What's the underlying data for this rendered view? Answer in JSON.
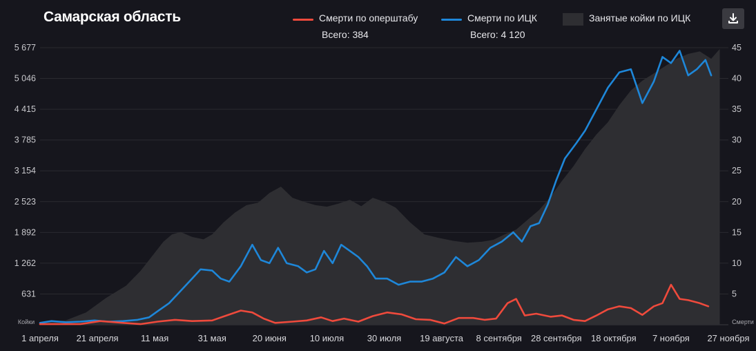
{
  "title": "Самарская область",
  "legend": {
    "red_label": "Смерти по оперштабу",
    "red_total": "Всего: 384",
    "blue_label": "Смерти по ИЦК",
    "blue_total": "Всего: 4 120",
    "area_label": "Занятые койки по ИЦК"
  },
  "download_icon": "download-icon",
  "colors": {
    "background": "#16161d",
    "red": "#ef4a3c",
    "blue": "#1e87d9",
    "area": "#2e2e32",
    "grid": "#2a2a30"
  },
  "chart_data": {
    "type": "line",
    "x_range": [
      "2020-04-01",
      "2020-11-27"
    ],
    "x_ticks": [
      "1 апреля",
      "21 апреля",
      "11 мая",
      "31 мая",
      "20 июня",
      "10 июля",
      "30 июля",
      "19 августа",
      "8 сентября",
      "28 сентября",
      "18 октября",
      "7 ноября",
      "27 ноября"
    ],
    "left_axis": {
      "unit_label": "Койки",
      "ticks": [
        "5 677",
        "5 046",
        "4 415",
        "3 785",
        "3 154",
        "2 523",
        "1 892",
        "1 262",
        "631"
      ],
      "ylim": [
        0,
        5677
      ]
    },
    "right_axis": {
      "unit_label": "Смерти",
      "ticks": [
        "45",
        "40",
        "35",
        "30",
        "25",
        "20",
        "15",
        "10",
        "5"
      ],
      "ylim": [
        0,
        45
      ]
    },
    "series": [
      {
        "name": "Занятые койки по ИЦК",
        "kind": "area",
        "axis": "left",
        "points": [
          [
            "2020-04-01",
            40
          ],
          [
            "2020-04-10",
            90
          ],
          [
            "2020-04-17",
            250
          ],
          [
            "2020-04-24",
            550
          ],
          [
            "2020-05-01",
            800
          ],
          [
            "2020-05-06",
            1100
          ],
          [
            "2020-05-10",
            1400
          ],
          [
            "2020-05-14",
            1700
          ],
          [
            "2020-05-17",
            1850
          ],
          [
            "2020-05-20",
            1900
          ],
          [
            "2020-05-24",
            1800
          ],
          [
            "2020-05-28",
            1750
          ],
          [
            "2020-05-31",
            1850
          ],
          [
            "2020-06-04",
            2100
          ],
          [
            "2020-06-08",
            2300
          ],
          [
            "2020-06-12",
            2450
          ],
          [
            "2020-06-16",
            2500
          ],
          [
            "2020-06-20",
            2700
          ],
          [
            "2020-06-24",
            2830
          ],
          [
            "2020-06-28",
            2600
          ],
          [
            "2020-07-02",
            2520
          ],
          [
            "2020-07-06",
            2450
          ],
          [
            "2020-07-10",
            2420
          ],
          [
            "2020-07-14",
            2480
          ],
          [
            "2020-07-18",
            2560
          ],
          [
            "2020-07-22",
            2430
          ],
          [
            "2020-07-26",
            2600
          ],
          [
            "2020-07-30",
            2520
          ],
          [
            "2020-08-03",
            2400
          ],
          [
            "2020-08-08",
            2100
          ],
          [
            "2020-08-13",
            1850
          ],
          [
            "2020-08-18",
            1780
          ],
          [
            "2020-08-23",
            1720
          ],
          [
            "2020-08-28",
            1680
          ],
          [
            "2020-09-02",
            1700
          ],
          [
            "2020-09-06",
            1740
          ],
          [
            "2020-09-10",
            1850
          ],
          [
            "2020-09-14",
            1950
          ],
          [
            "2020-09-18",
            2150
          ],
          [
            "2020-09-22",
            2350
          ],
          [
            "2020-09-26",
            2620
          ],
          [
            "2020-09-30",
            2950
          ],
          [
            "2020-10-04",
            3250
          ],
          [
            "2020-10-08",
            3600
          ],
          [
            "2020-10-12",
            3900
          ],
          [
            "2020-10-16",
            4150
          ],
          [
            "2020-10-20",
            4500
          ],
          [
            "2020-10-24",
            4800
          ],
          [
            "2020-10-28",
            5000
          ],
          [
            "2020-11-01",
            5150
          ],
          [
            "2020-11-05",
            5300
          ],
          [
            "2020-11-09",
            5450
          ],
          [
            "2020-11-13",
            5550
          ],
          [
            "2020-11-17",
            5600
          ],
          [
            "2020-11-21",
            5450
          ],
          [
            "2020-11-24",
            5650
          ]
        ]
      },
      {
        "name": "Смерти по ИЦК",
        "kind": "line",
        "axis": "right",
        "points": [
          [
            "2020-04-01",
            0.3
          ],
          [
            "2020-04-05",
            0.6
          ],
          [
            "2020-04-10",
            0.4
          ],
          [
            "2020-04-15",
            0.5
          ],
          [
            "2020-04-20",
            0.7
          ],
          [
            "2020-04-25",
            0.5
          ],
          [
            "2020-04-30",
            0.6
          ],
          [
            "2020-05-05",
            0.8
          ],
          [
            "2020-05-09",
            1.2
          ],
          [
            "2020-05-12",
            2.2
          ],
          [
            "2020-05-16",
            3.5
          ],
          [
            "2020-05-20",
            5.5
          ],
          [
            "2020-05-24",
            7.5
          ],
          [
            "2020-05-27",
            9.0
          ],
          [
            "2020-05-31",
            8.8
          ],
          [
            "2020-06-03",
            7.5
          ],
          [
            "2020-06-06",
            7.0
          ],
          [
            "2020-06-10",
            9.5
          ],
          [
            "2020-06-14",
            13.0
          ],
          [
            "2020-06-17",
            10.5
          ],
          [
            "2020-06-20",
            10.0
          ],
          [
            "2020-06-23",
            12.5
          ],
          [
            "2020-06-26",
            10.0
          ],
          [
            "2020-06-30",
            9.5
          ],
          [
            "2020-07-03",
            8.5
          ],
          [
            "2020-07-06",
            9.0
          ],
          [
            "2020-07-09",
            12.0
          ],
          [
            "2020-07-12",
            10.0
          ],
          [
            "2020-07-15",
            13.0
          ],
          [
            "2020-07-18",
            12.0
          ],
          [
            "2020-07-21",
            11.0
          ],
          [
            "2020-07-24",
            9.5
          ],
          [
            "2020-07-27",
            7.5
          ],
          [
            "2020-07-31",
            7.5
          ],
          [
            "2020-08-04",
            6.5
          ],
          [
            "2020-08-08",
            7.0
          ],
          [
            "2020-08-12",
            7.0
          ],
          [
            "2020-08-16",
            7.5
          ],
          [
            "2020-08-20",
            8.5
          ],
          [
            "2020-08-24",
            11.0
          ],
          [
            "2020-08-28",
            9.5
          ],
          [
            "2020-09-01",
            10.5
          ],
          [
            "2020-09-05",
            12.5
          ],
          [
            "2020-09-09",
            13.5
          ],
          [
            "2020-09-13",
            15.0
          ],
          [
            "2020-09-16",
            13.5
          ],
          [
            "2020-09-19",
            16.0
          ],
          [
            "2020-09-22",
            16.5
          ],
          [
            "2020-09-25",
            19.5
          ],
          [
            "2020-09-28",
            23.5
          ],
          [
            "2020-10-01",
            27.0
          ],
          [
            "2020-10-05",
            29.5
          ],
          [
            "2020-10-08",
            31.5
          ],
          [
            "2020-10-12",
            35.0
          ],
          [
            "2020-10-16",
            38.5
          ],
          [
            "2020-10-20",
            41.0
          ],
          [
            "2020-10-24",
            41.5
          ],
          [
            "2020-10-28",
            36.0
          ],
          [
            "2020-11-01",
            39.5
          ],
          [
            "2020-11-04",
            43.5
          ],
          [
            "2020-11-07",
            42.5
          ],
          [
            "2020-11-10",
            44.5
          ],
          [
            "2020-11-13",
            40.5
          ],
          [
            "2020-11-16",
            41.5
          ],
          [
            "2020-11-19",
            43.0
          ],
          [
            "2020-11-21",
            40.5
          ]
        ]
      },
      {
        "name": "Смерти по оперштабу",
        "kind": "line",
        "axis": "right",
        "points": [
          [
            "2020-04-01",
            0.1
          ],
          [
            "2020-04-15",
            0.1
          ],
          [
            "2020-04-22",
            0.6
          ],
          [
            "2020-04-30",
            0.3
          ],
          [
            "2020-05-06",
            0.1
          ],
          [
            "2020-05-12",
            0.5
          ],
          [
            "2020-05-18",
            0.8
          ],
          [
            "2020-05-24",
            0.6
          ],
          [
            "2020-05-31",
            0.7
          ],
          [
            "2020-06-05",
            1.5
          ],
          [
            "2020-06-10",
            2.3
          ],
          [
            "2020-06-14",
            2.0
          ],
          [
            "2020-06-18",
            1.0
          ],
          [
            "2020-06-22",
            0.3
          ],
          [
            "2020-06-28",
            0.5
          ],
          [
            "2020-07-03",
            0.7
          ],
          [
            "2020-07-08",
            1.2
          ],
          [
            "2020-07-12",
            0.6
          ],
          [
            "2020-07-16",
            1.0
          ],
          [
            "2020-07-21",
            0.5
          ],
          [
            "2020-07-26",
            1.4
          ],
          [
            "2020-07-31",
            2.0
          ],
          [
            "2020-08-05",
            1.7
          ],
          [
            "2020-08-10",
            0.9
          ],
          [
            "2020-08-15",
            0.8
          ],
          [
            "2020-08-20",
            0.2
          ],
          [
            "2020-08-25",
            1.1
          ],
          [
            "2020-08-30",
            1.1
          ],
          [
            "2020-09-03",
            0.8
          ],
          [
            "2020-09-07",
            1.0
          ],
          [
            "2020-09-11",
            3.5
          ],
          [
            "2020-09-14",
            4.2
          ],
          [
            "2020-09-17",
            1.5
          ],
          [
            "2020-09-21",
            1.8
          ],
          [
            "2020-09-26",
            1.3
          ],
          [
            "2020-09-30",
            1.5
          ],
          [
            "2020-10-04",
            0.8
          ],
          [
            "2020-10-08",
            0.6
          ],
          [
            "2020-10-12",
            1.5
          ],
          [
            "2020-10-16",
            2.5
          ],
          [
            "2020-10-20",
            3.0
          ],
          [
            "2020-10-24",
            2.7
          ],
          [
            "2020-10-28",
            1.6
          ],
          [
            "2020-11-01",
            3.0
          ],
          [
            "2020-11-04",
            3.5
          ],
          [
            "2020-11-07",
            6.5
          ],
          [
            "2020-11-10",
            4.2
          ],
          [
            "2020-11-13",
            4.0
          ],
          [
            "2020-11-17",
            3.5
          ],
          [
            "2020-11-20",
            3.0
          ]
        ]
      }
    ]
  }
}
